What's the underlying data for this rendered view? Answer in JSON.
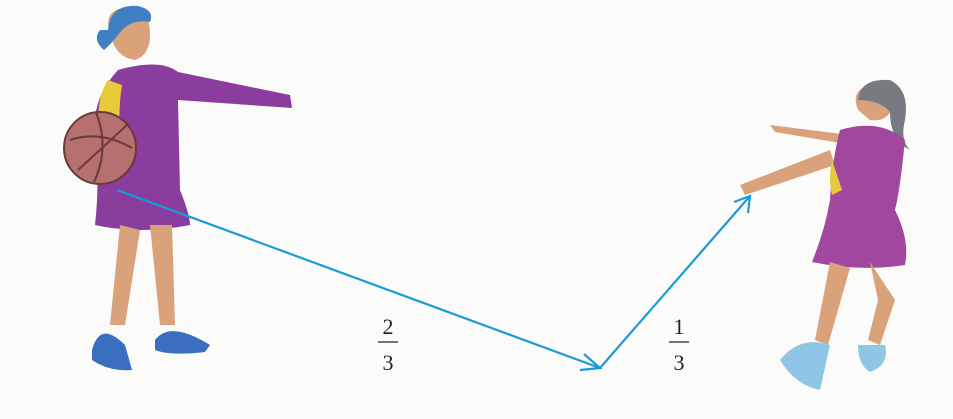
{
  "fractions": [
    {
      "numerator": 2,
      "denominator": 3
    },
    {
      "numerator": 1,
      "denominator": 3
    }
  ]
}
